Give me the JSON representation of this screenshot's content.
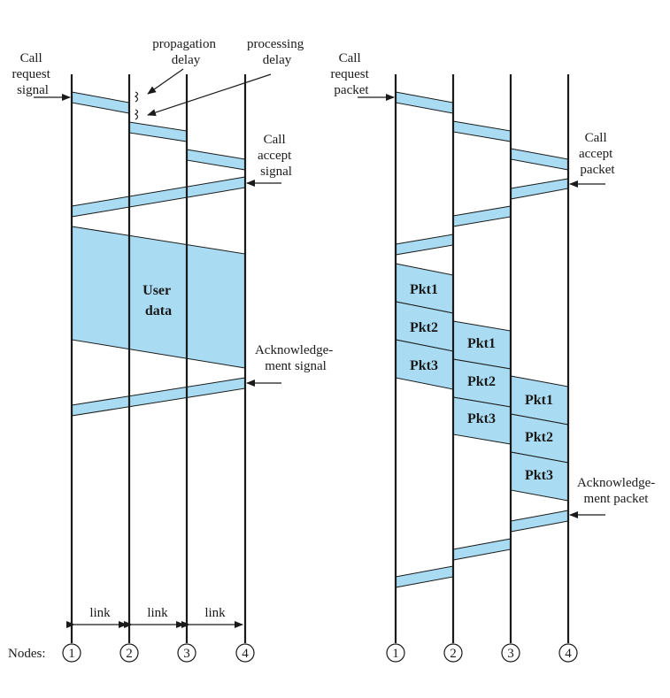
{
  "left": {
    "call_request_label": [
      "Call",
      "request",
      "signal"
    ],
    "propagation_label": [
      "propagation",
      "delay"
    ],
    "processing_label": [
      "processing",
      "delay"
    ],
    "call_accept_label": [
      "Call",
      "accept",
      "signal"
    ],
    "user_data_label": [
      "User",
      "data"
    ],
    "ack_label": [
      "Acknowledge-",
      "ment signal"
    ],
    "link_labels": [
      "link",
      "link",
      "link"
    ],
    "nodes_label": "Nodes:",
    "node_numbers": [
      "1",
      "2",
      "3",
      "4"
    ]
  },
  "right": {
    "call_request_label": [
      "Call",
      "request",
      "packet"
    ],
    "call_accept_label": [
      "Call",
      "accept",
      "packet"
    ],
    "ack_label": [
      "Acknowledge-",
      "ment packet"
    ],
    "packet_labels": [
      "Pkt1",
      "Pkt2",
      "Pkt3"
    ],
    "node_numbers": [
      "1",
      "2",
      "3",
      "4"
    ]
  },
  "colors": {
    "band_fill": "#a9dcf2",
    "line": "#1a1a1a"
  }
}
